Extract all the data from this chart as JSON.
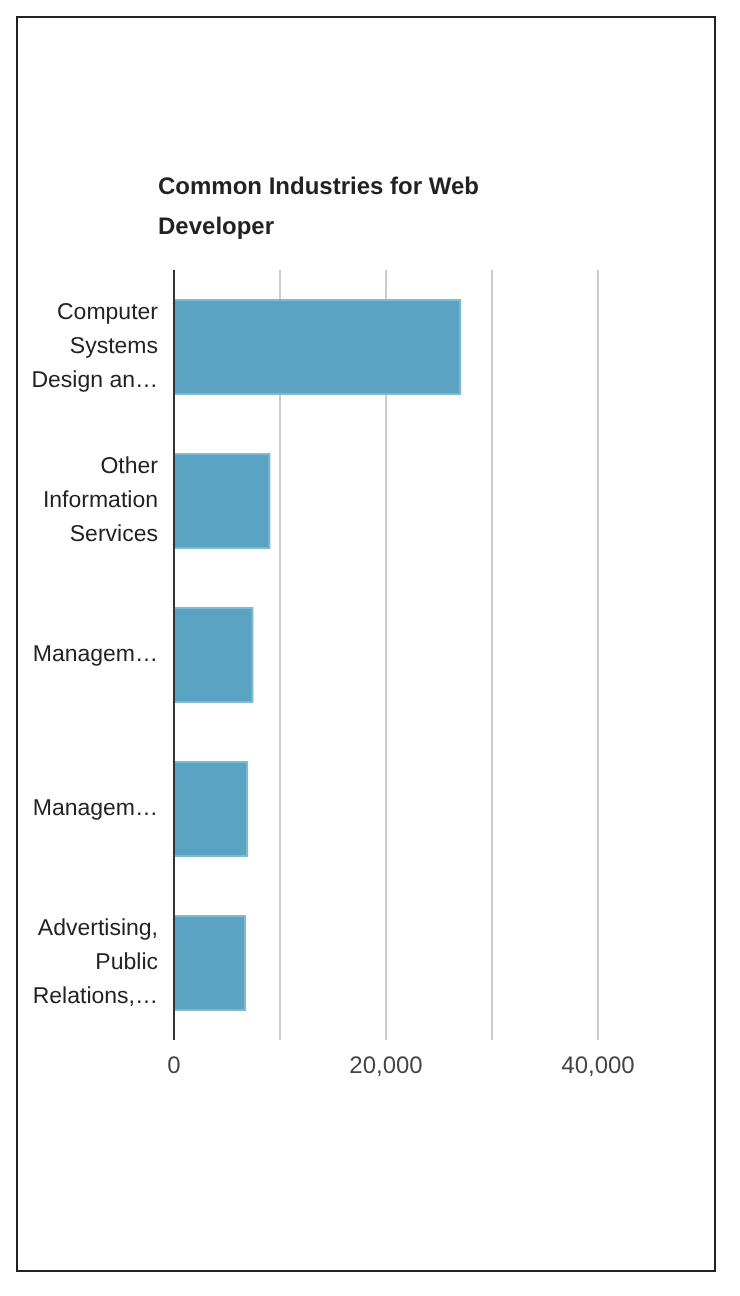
{
  "chart_data": {
    "type": "bar",
    "orientation": "horizontal",
    "title": "Common Industries for Web Developer",
    "categories": [
      "Computer Systems Design an…",
      "Other Information Services",
      "Managem…",
      "Managem…",
      "Advertising, Public Relations,…"
    ],
    "values": [
      27000,
      9000,
      7400,
      6900,
      6700
    ],
    "color": "#5ba3c2",
    "xlim": [
      0,
      40000
    ],
    "xticks": [
      0,
      {
        "value": 10000,
        "label": null
      },
      {
        "value": 20000,
        "label": "20,000"
      },
      {
        "value": 30000,
        "label": null
      },
      {
        "value": 40000,
        "label": "40,000"
      }
    ],
    "grid": "x",
    "legend": false
  }
}
